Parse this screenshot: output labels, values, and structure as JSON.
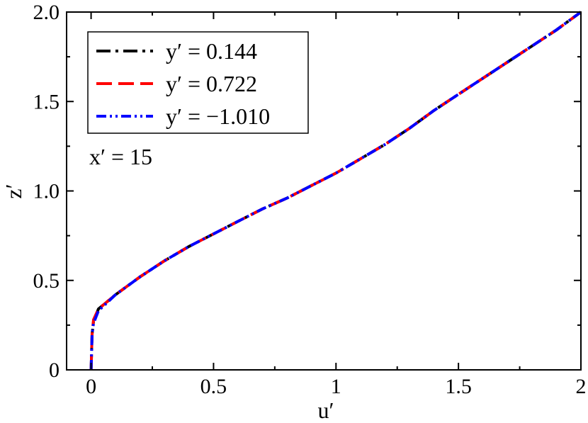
{
  "chart_data": {
    "type": "line",
    "xlabel": "u′",
    "ylabel": "z′",
    "xlim": [
      -0.1,
      2.0
    ],
    "ylim": [
      0,
      2.0
    ],
    "xticks": [
      {
        "value": 0,
        "label": "0"
      },
      {
        "value": 0.5,
        "label": "0.5"
      },
      {
        "value": 1,
        "label": "1"
      },
      {
        "value": 1.5,
        "label": "1.5"
      },
      {
        "value": 2,
        "label": "2"
      }
    ],
    "yticks": [
      {
        "value": 0,
        "label": "0"
      },
      {
        "value": 0.5,
        "label": "0.5"
      },
      {
        "value": 1.0,
        "label": "1.0"
      },
      {
        "value": 1.5,
        "label": "1.5"
      },
      {
        "value": 2.0,
        "label": "2.0"
      }
    ],
    "grid": false,
    "legend_position": "top-left",
    "annotation": "x′ = 15",
    "series": [
      {
        "name": "y′ = 0.144",
        "color": "#000000",
        "dash": "long-dash-dot",
        "points": [
          [
            0.0,
            0.0
          ],
          [
            0.002,
            0.1
          ],
          [
            0.004,
            0.2
          ],
          [
            0.01,
            0.27
          ],
          [
            0.03,
            0.34
          ],
          [
            0.1,
            0.42
          ],
          [
            0.2,
            0.52
          ],
          [
            0.3,
            0.61
          ],
          [
            0.4,
            0.69
          ],
          [
            0.5,
            0.76
          ],
          [
            0.6,
            0.83
          ],
          [
            0.7,
            0.9
          ],
          [
            0.8,
            0.96
          ],
          [
            0.9,
            1.03
          ],
          [
            1.0,
            1.1
          ],
          [
            1.1,
            1.18
          ],
          [
            1.2,
            1.26
          ],
          [
            1.3,
            1.35
          ],
          [
            1.4,
            1.45
          ],
          [
            1.5,
            1.54
          ],
          [
            1.6,
            1.63
          ],
          [
            1.7,
            1.72
          ],
          [
            1.8,
            1.81
          ],
          [
            1.9,
            1.9
          ],
          [
            2.0,
            2.0
          ]
        ]
      },
      {
        "name": "y′ = 0.722",
        "color": "#ff0000",
        "dash": "long-dash",
        "points": [
          [
            0.0,
            0.0
          ],
          [
            0.002,
            0.1
          ],
          [
            0.004,
            0.2
          ],
          [
            0.01,
            0.28
          ],
          [
            0.03,
            0.34
          ],
          [
            0.1,
            0.42
          ],
          [
            0.2,
            0.52
          ],
          [
            0.3,
            0.61
          ],
          [
            0.4,
            0.69
          ],
          [
            0.5,
            0.76
          ],
          [
            0.6,
            0.83
          ],
          [
            0.7,
            0.9
          ],
          [
            0.8,
            0.96
          ],
          [
            0.9,
            1.03
          ],
          [
            1.0,
            1.1
          ],
          [
            1.1,
            1.18
          ],
          [
            1.2,
            1.26
          ],
          [
            1.3,
            1.35
          ],
          [
            1.4,
            1.45
          ],
          [
            1.5,
            1.54
          ],
          [
            1.6,
            1.63
          ],
          [
            1.7,
            1.72
          ],
          [
            1.8,
            1.81
          ],
          [
            1.9,
            1.9
          ],
          [
            2.0,
            2.0
          ]
        ]
      },
      {
        "name": "y′ = −1.010",
        "color": "#0000ff",
        "dash": "dash-dot-dot",
        "points": [
          [
            0.0,
            0.0
          ],
          [
            0.002,
            0.1
          ],
          [
            0.004,
            0.2
          ],
          [
            0.01,
            0.26
          ],
          [
            0.03,
            0.33
          ],
          [
            0.1,
            0.42
          ],
          [
            0.2,
            0.52
          ],
          [
            0.3,
            0.61
          ],
          [
            0.4,
            0.69
          ],
          [
            0.5,
            0.76
          ],
          [
            0.6,
            0.83
          ],
          [
            0.7,
            0.9
          ],
          [
            0.8,
            0.96
          ],
          [
            0.9,
            1.03
          ],
          [
            1.0,
            1.1
          ],
          [
            1.1,
            1.18
          ],
          [
            1.2,
            1.26
          ],
          [
            1.3,
            1.35
          ],
          [
            1.4,
            1.45
          ],
          [
            1.5,
            1.54
          ],
          [
            1.6,
            1.63
          ],
          [
            1.7,
            1.72
          ],
          [
            1.8,
            1.81
          ],
          [
            1.9,
            1.9
          ],
          [
            2.0,
            2.0
          ]
        ]
      }
    ]
  }
}
